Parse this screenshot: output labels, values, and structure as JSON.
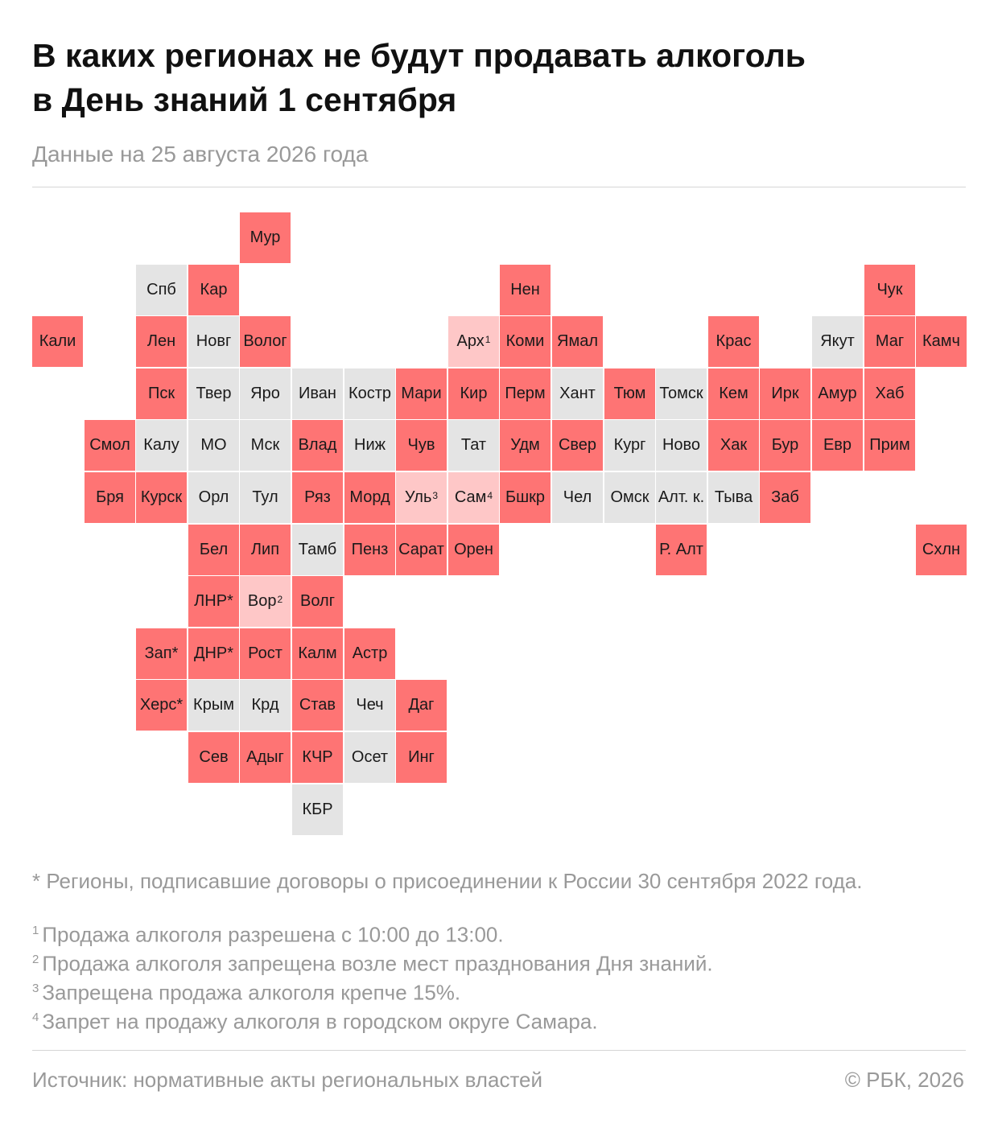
{
  "header": {
    "title_line1": "В каких регионах не будут продавать алкоголь",
    "title_line2": "в День знаний 1 сентября",
    "subtitle": "Данные на 25 августа 2026 года"
  },
  "colors": {
    "ban": "#fe7474",
    "partial": "#fec7c7",
    "none": "#e4e4e4"
  },
  "regions": [
    {
      "label": "Мур",
      "status": "ban",
      "col": 4,
      "row": 0
    },
    {
      "label": "Спб",
      "status": "none",
      "col": 2,
      "row": 1
    },
    {
      "label": "Кар",
      "status": "ban",
      "col": 3,
      "row": 1
    },
    {
      "label": "Нен",
      "status": "ban",
      "col": 9,
      "row": 1
    },
    {
      "label": "Чук",
      "status": "ban",
      "col": 16,
      "row": 1
    },
    {
      "label": "Кали",
      "status": "ban",
      "col": 0,
      "row": 2
    },
    {
      "label": "Лен",
      "status": "ban",
      "col": 2,
      "row": 2
    },
    {
      "label": "Новг",
      "status": "none",
      "col": 3,
      "row": 2
    },
    {
      "label": "Волог",
      "status": "ban",
      "col": 4,
      "row": 2
    },
    {
      "label": "Арх",
      "sup": "1",
      "status": "partial",
      "col": 8,
      "row": 2
    },
    {
      "label": "Коми",
      "status": "ban",
      "col": 9,
      "row": 2
    },
    {
      "label": "Ямал",
      "status": "ban",
      "col": 10,
      "row": 2
    },
    {
      "label": "Крас",
      "status": "ban",
      "col": 13,
      "row": 2
    },
    {
      "label": "Якут",
      "status": "none",
      "col": 15,
      "row": 2
    },
    {
      "label": "Маг",
      "status": "ban",
      "col": 16,
      "row": 2
    },
    {
      "label": "Камч",
      "status": "ban",
      "col": 17,
      "row": 2
    },
    {
      "label": "Пск",
      "status": "ban",
      "col": 2,
      "row": 3
    },
    {
      "label": "Твер",
      "status": "none",
      "col": 3,
      "row": 3
    },
    {
      "label": "Яро",
      "status": "none",
      "col": 4,
      "row": 3
    },
    {
      "label": "Иван",
      "status": "none",
      "col": 5,
      "row": 3
    },
    {
      "label": "Костр",
      "status": "none",
      "col": 6,
      "row": 3
    },
    {
      "label": "Мари",
      "status": "ban",
      "col": 7,
      "row": 3
    },
    {
      "label": "Кир",
      "status": "ban",
      "col": 8,
      "row": 3
    },
    {
      "label": "Перм",
      "status": "ban",
      "col": 9,
      "row": 3
    },
    {
      "label": "Хант",
      "status": "none",
      "col": 10,
      "row": 3
    },
    {
      "label": "Тюм",
      "status": "ban",
      "col": 11,
      "row": 3
    },
    {
      "label": "Томск",
      "status": "none",
      "col": 12,
      "row": 3
    },
    {
      "label": "Кем",
      "status": "ban",
      "col": 13,
      "row": 3
    },
    {
      "label": "Ирк",
      "status": "ban",
      "col": 14,
      "row": 3
    },
    {
      "label": "Амур",
      "status": "ban",
      "col": 15,
      "row": 3
    },
    {
      "label": "Хаб",
      "status": "ban",
      "col": 16,
      "row": 3
    },
    {
      "label": "Смол",
      "status": "ban",
      "col": 1,
      "row": 4
    },
    {
      "label": "Калу",
      "status": "none",
      "col": 2,
      "row": 4
    },
    {
      "label": "МО",
      "status": "none",
      "col": 3,
      "row": 4
    },
    {
      "label": "Мск",
      "status": "none",
      "col": 4,
      "row": 4
    },
    {
      "label": "Влад",
      "status": "ban",
      "col": 5,
      "row": 4
    },
    {
      "label": "Ниж",
      "status": "none",
      "col": 6,
      "row": 4
    },
    {
      "label": "Чув",
      "status": "ban",
      "col": 7,
      "row": 4
    },
    {
      "label": "Тат",
      "status": "none",
      "col": 8,
      "row": 4
    },
    {
      "label": "Удм",
      "status": "ban",
      "col": 9,
      "row": 4
    },
    {
      "label": "Свер",
      "status": "ban",
      "col": 10,
      "row": 4
    },
    {
      "label": "Кург",
      "status": "none",
      "col": 11,
      "row": 4
    },
    {
      "label": "Ново",
      "status": "none",
      "col": 12,
      "row": 4
    },
    {
      "label": "Хак",
      "status": "ban",
      "col": 13,
      "row": 4
    },
    {
      "label": "Бур",
      "status": "ban",
      "col": 14,
      "row": 4
    },
    {
      "label": "Евр",
      "status": "ban",
      "col": 15,
      "row": 4
    },
    {
      "label": "Прим",
      "status": "ban",
      "col": 16,
      "row": 4
    },
    {
      "label": "Бря",
      "status": "ban",
      "col": 1,
      "row": 5
    },
    {
      "label": "Курск",
      "status": "ban",
      "col": 2,
      "row": 5
    },
    {
      "label": "Орл",
      "status": "none",
      "col": 3,
      "row": 5
    },
    {
      "label": "Тул",
      "status": "none",
      "col": 4,
      "row": 5
    },
    {
      "label": "Ряз",
      "status": "ban",
      "col": 5,
      "row": 5
    },
    {
      "label": "Морд",
      "status": "ban",
      "col": 6,
      "row": 5
    },
    {
      "label": "Уль",
      "sup": "3",
      "status": "partial",
      "col": 7,
      "row": 5
    },
    {
      "label": "Сам",
      "sup": "4",
      "status": "partial",
      "col": 8,
      "row": 5
    },
    {
      "label": "Бшкр",
      "status": "ban",
      "col": 9,
      "row": 5
    },
    {
      "label": "Чел",
      "status": "none",
      "col": 10,
      "row": 5
    },
    {
      "label": "Омск",
      "status": "none",
      "col": 11,
      "row": 5
    },
    {
      "label": "Алт. к.",
      "status": "none",
      "col": 12,
      "row": 5
    },
    {
      "label": "Тыва",
      "status": "none",
      "col": 13,
      "row": 5
    },
    {
      "label": "Заб",
      "status": "ban",
      "col": 14,
      "row": 5
    },
    {
      "label": "Бел",
      "status": "ban",
      "col": 3,
      "row": 6
    },
    {
      "label": "Лип",
      "status": "ban",
      "col": 4,
      "row": 6
    },
    {
      "label": "Тамб",
      "status": "none",
      "col": 5,
      "row": 6
    },
    {
      "label": "Пенз",
      "status": "ban",
      "col": 6,
      "row": 6
    },
    {
      "label": "Сарат",
      "status": "ban",
      "col": 7,
      "row": 6
    },
    {
      "label": "Орен",
      "status": "ban",
      "col": 8,
      "row": 6
    },
    {
      "label": "Р. Алт",
      "status": "ban",
      "col": 12,
      "row": 6
    },
    {
      "label": "Схлн",
      "status": "ban",
      "col": 17,
      "row": 6
    },
    {
      "label": "ЛНР*",
      "status": "ban",
      "col": 3,
      "row": 7
    },
    {
      "label": "Вор",
      "sup": "2",
      "status": "partial",
      "col": 4,
      "row": 7
    },
    {
      "label": "Волг",
      "status": "ban",
      "col": 5,
      "row": 7
    },
    {
      "label": "Зап*",
      "status": "ban",
      "col": 2,
      "row": 8
    },
    {
      "label": "ДНР*",
      "status": "ban",
      "col": 3,
      "row": 8
    },
    {
      "label": "Рост",
      "status": "ban",
      "col": 4,
      "row": 8
    },
    {
      "label": "Калм",
      "status": "ban",
      "col": 5,
      "row": 8
    },
    {
      "label": "Астр",
      "status": "ban",
      "col": 6,
      "row": 8
    },
    {
      "label": "Херс*",
      "status": "ban",
      "col": 2,
      "row": 9
    },
    {
      "label": "Крым",
      "status": "none",
      "col": 3,
      "row": 9
    },
    {
      "label": "Крд",
      "status": "none",
      "col": 4,
      "row": 9
    },
    {
      "label": "Став",
      "status": "ban",
      "col": 5,
      "row": 9
    },
    {
      "label": "Чеч",
      "status": "none",
      "col": 6,
      "row": 9
    },
    {
      "label": "Даг",
      "status": "ban",
      "col": 7,
      "row": 9
    },
    {
      "label": "Сев",
      "status": "ban",
      "col": 3,
      "row": 10
    },
    {
      "label": "Адыг",
      "status": "ban",
      "col": 4,
      "row": 10
    },
    {
      "label": "КЧР",
      "status": "ban",
      "col": 5,
      "row": 10
    },
    {
      "label": "Осет",
      "status": "none",
      "col": 6,
      "row": 10
    },
    {
      "label": "Инг",
      "status": "ban",
      "col": 7,
      "row": 10
    },
    {
      "label": "КБР",
      "status": "none",
      "col": 5,
      "row": 11
    }
  ],
  "notes": {
    "star": "* Регионы, подписавшие договоры о присоединении к России 30 сентября 2022 года.",
    "n1_mark": "1",
    "n1": "Продажа алкоголя разрешена с 10:00 до 13:00.",
    "n2_mark": "2",
    "n2": "Продажа алкоголя запрещена возле мест празднования Дня знаний.",
    "n3_mark": "3",
    "n3": "Запрещена продажа алкоголя крепче 15%.",
    "n4_mark": "4",
    "n4": "Запрет на продажу алкоголя в городском округе Самара."
  },
  "footer": {
    "source": "Источник: нормативные акты региональных властей",
    "copyright": "© РБК, 2026"
  }
}
